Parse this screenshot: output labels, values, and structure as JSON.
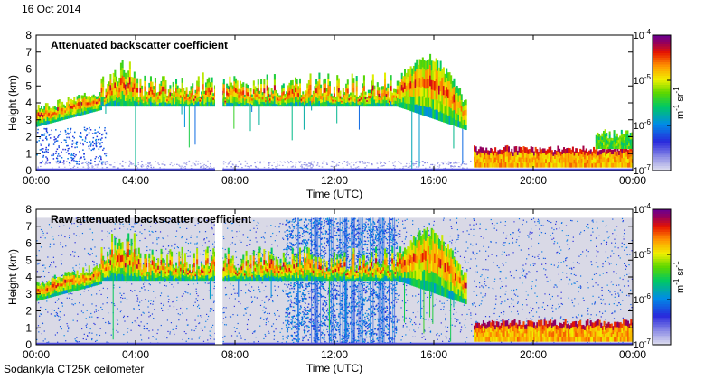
{
  "page": {
    "date": "16 Oct 2014",
    "instrument": "Sodankyla CT25K ceilometer"
  },
  "colors": {
    "axis": "#000000",
    "panel_bg": "#ffffff",
    "raw_noise_bg": "#d9d9e6"
  },
  "chart_data": [
    {
      "type": "heatmap",
      "title": "Attenuated backscatter coefficient",
      "xlabel": "Time (UTC)",
      "ylabel": "Height (km)",
      "xticks": [
        "00:00",
        "04:00",
        "08:00",
        "12:00",
        "16:00",
        "20:00",
        "00:00"
      ],
      "xlim": [
        0,
        24
      ],
      "ylim": [
        0,
        8
      ],
      "yticks": [
        "0",
        "1",
        "2",
        "3",
        "4",
        "5",
        "6",
        "7",
        "8"
      ],
      "colorbar": {
        "scale": "log",
        "range": [
          1e-07,
          0.0001
        ],
        "ticks": [
          "10-7",
          "10-6",
          "10-5",
          "10-4"
        ],
        "tick_labels": [
          {
            "base": "10",
            "exp": "-7"
          },
          {
            "base": "10",
            "exp": "-6"
          },
          {
            "base": "10",
            "exp": "-5"
          },
          {
            "base": "10",
            "exp": "-4"
          }
        ],
        "unit": {
          "a": "m",
          "a_exp": "-1",
          "b": "sr",
          "b_exp": "-1"
        }
      },
      "features": [
        {
          "name": "cloud_layer",
          "t_start": 0.0,
          "t_end": 2.6,
          "base_start_km": 2.6,
          "base_end_km": 3.6,
          "top_km": 4.3
        },
        {
          "name": "cloud_layer",
          "t_start": 2.6,
          "t_end": 14.5,
          "base_km": 3.8,
          "top_km": 5.8
        },
        {
          "name": "cloud_layer",
          "t_start": 14.5,
          "t_end": 17.3,
          "base_start_km": 3.8,
          "base_end_km": 2.4,
          "top_km": 6.7
        },
        {
          "name": "low_cloud",
          "t_start": 17.6,
          "t_end": 24.0,
          "base_km": 0.2,
          "top_km": 1.5
        },
        {
          "name": "low_cloud_thick",
          "t_start": 22.5,
          "t_end": 24.0,
          "base_km": 0.2,
          "top_km": 2.5
        },
        {
          "name": "data_gap",
          "t_start": 7.2,
          "t_end": 7.5
        }
      ]
    },
    {
      "type": "heatmap",
      "title": "Raw attenuated backscatter coefficient",
      "xlabel": "Time (UTC)",
      "ylabel": "Height (km)",
      "xticks": [
        "00:00",
        "04:00",
        "08:00",
        "12:00",
        "16:00",
        "20:00",
        "00:00"
      ],
      "xlim": [
        0,
        24
      ],
      "ylim": [
        0,
        8
      ],
      "yticks": [
        "0",
        "1",
        "2",
        "3",
        "4",
        "5",
        "6",
        "7",
        "8"
      ],
      "colorbar": {
        "scale": "log",
        "range": [
          1e-07,
          0.0001
        ],
        "ticks": [
          "10-7",
          "10-6",
          "10-5",
          "10-4"
        ],
        "tick_labels": [
          {
            "base": "10",
            "exp": "-7"
          },
          {
            "base": "10",
            "exp": "-6"
          },
          {
            "base": "10",
            "exp": "-5"
          },
          {
            "base": "10",
            "exp": "-4"
          }
        ],
        "unit": {
          "a": "m",
          "a_exp": "-1",
          "b": "sr",
          "b_exp": "-1"
        }
      },
      "features": [
        {
          "name": "noise_floor",
          "t_start": 0.0,
          "t_end": 24.0,
          "top_km": 7.5
        },
        {
          "name": "noise_band_blue",
          "t_start": 10.0,
          "t_end": 14.5,
          "top_km": 7.5
        },
        {
          "name": "cloud_layer",
          "t_start": 0.0,
          "t_end": 2.6,
          "base_start_km": 2.6,
          "base_end_km": 3.6,
          "top_km": 4.3
        },
        {
          "name": "cloud_layer",
          "t_start": 2.6,
          "t_end": 14.5,
          "base_km": 3.8,
          "top_km": 5.8
        },
        {
          "name": "cloud_layer",
          "t_start": 14.5,
          "t_end": 17.3,
          "base_start_km": 3.8,
          "base_end_km": 2.4,
          "top_km": 6.7
        },
        {
          "name": "low_cloud",
          "t_start": 17.6,
          "t_end": 24.0,
          "base_km": 0.2,
          "top_km": 1.5
        },
        {
          "name": "data_gap",
          "t_start": 7.2,
          "t_end": 7.5
        }
      ]
    }
  ]
}
